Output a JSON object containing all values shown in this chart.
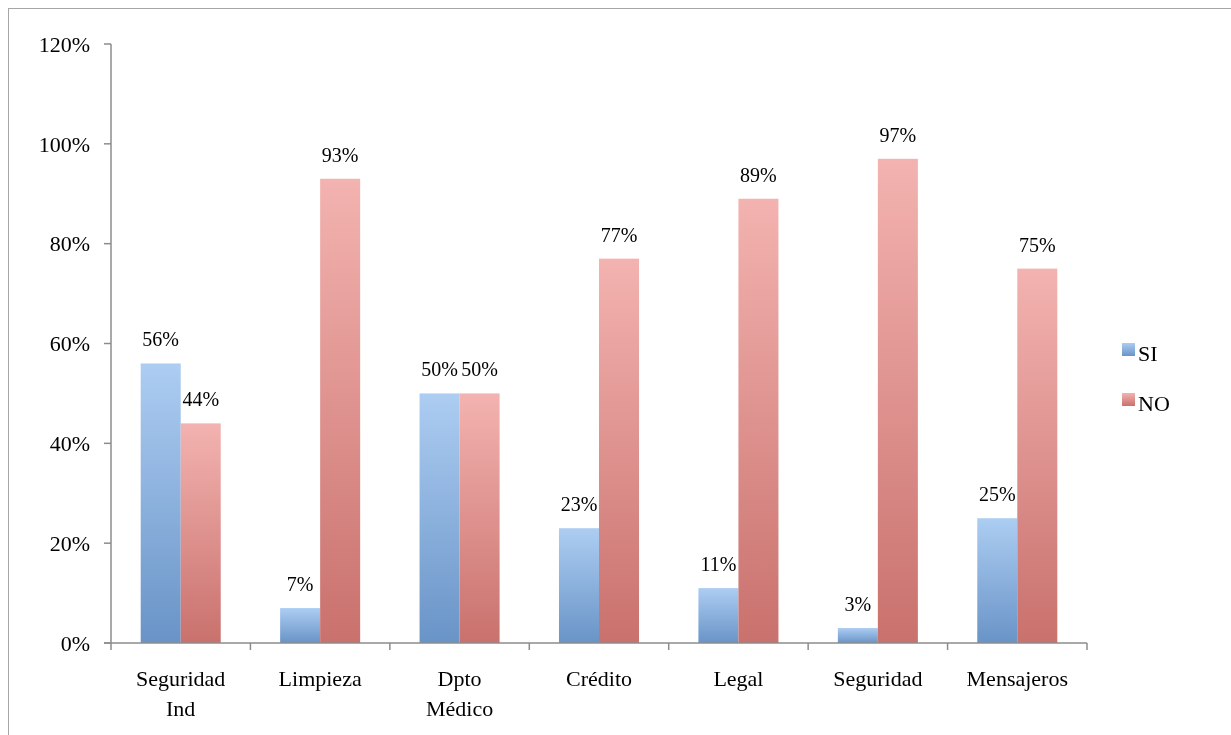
{
  "chart_data": {
    "type": "bar",
    "categories": [
      "Seguridad Ind",
      "Limpieza",
      "Dpto Médico",
      "Crédito",
      "Legal",
      "Seguridad",
      "Mensajeros"
    ],
    "series": [
      {
        "name": "SI",
        "color": "#7baeea",
        "values": [
          56,
          7,
          50,
          23,
          11,
          3,
          25
        ],
        "value_labels": [
          "56%",
          "7%",
          "50%",
          "23%",
          "11%",
          "3%",
          "25%"
        ]
      },
      {
        "name": "NO",
        "color": "#ec8580",
        "values": [
          44,
          93,
          50,
          77,
          89,
          97,
          75
        ],
        "value_labels": [
          "44%",
          "93%",
          "50%",
          "77%",
          "89%",
          "97%",
          "75%"
        ]
      }
    ],
    "ylim": [
      0,
      120
    ],
    "yticks": [
      {
        "value": 0,
        "label": "0%"
      },
      {
        "value": 20,
        "label": "20%"
      },
      {
        "value": 40,
        "label": "40%"
      },
      {
        "value": 60,
        "label": "60%"
      },
      {
        "value": 80,
        "label": "80%"
      },
      {
        "value": 100,
        "label": "100%"
      },
      {
        "value": 120,
        "label": "120%"
      }
    ],
    "legend": "right"
  }
}
